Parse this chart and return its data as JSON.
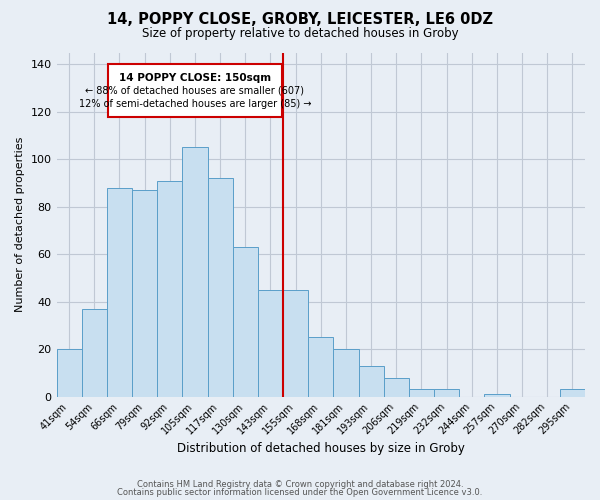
{
  "title": "14, POPPY CLOSE, GROBY, LEICESTER, LE6 0DZ",
  "subtitle": "Size of property relative to detached houses in Groby",
  "xlabel": "Distribution of detached houses by size in Groby",
  "ylabel": "Number of detached properties",
  "bar_labels": [
    "41sqm",
    "54sqm",
    "66sqm",
    "79sqm",
    "92sqm",
    "105sqm",
    "117sqm",
    "130sqm",
    "143sqm",
    "155sqm",
    "168sqm",
    "181sqm",
    "193sqm",
    "206sqm",
    "219sqm",
    "232sqm",
    "244sqm",
    "257sqm",
    "270sqm",
    "282sqm",
    "295sqm"
  ],
  "bar_heights": [
    20,
    37,
    88,
    87,
    91,
    105,
    92,
    63,
    45,
    45,
    25,
    20,
    13,
    8,
    3,
    3,
    0,
    1,
    0,
    0,
    3
  ],
  "bar_color": "#c8dff0",
  "bar_edge_color": "#5a9ec9",
  "vline_x_idx": 9,
  "vline_color": "#cc0000",
  "annotation_title": "14 POPPY CLOSE: 150sqm",
  "annotation_line1": "← 88% of detached houses are smaller (607)",
  "annotation_line2": "12% of semi-detached houses are larger (85) →",
  "annotation_box_color": "#cc0000",
  "ylim": [
    0,
    145
  ],
  "yticks": [
    0,
    20,
    40,
    60,
    80,
    100,
    120,
    140
  ],
  "footer_line1": "Contains HM Land Registry data © Crown copyright and database right 2024.",
  "footer_line2": "Contains public sector information licensed under the Open Government Licence v3.0.",
  "bg_color": "#e8eef5",
  "grid_color": "#c0c8d4"
}
